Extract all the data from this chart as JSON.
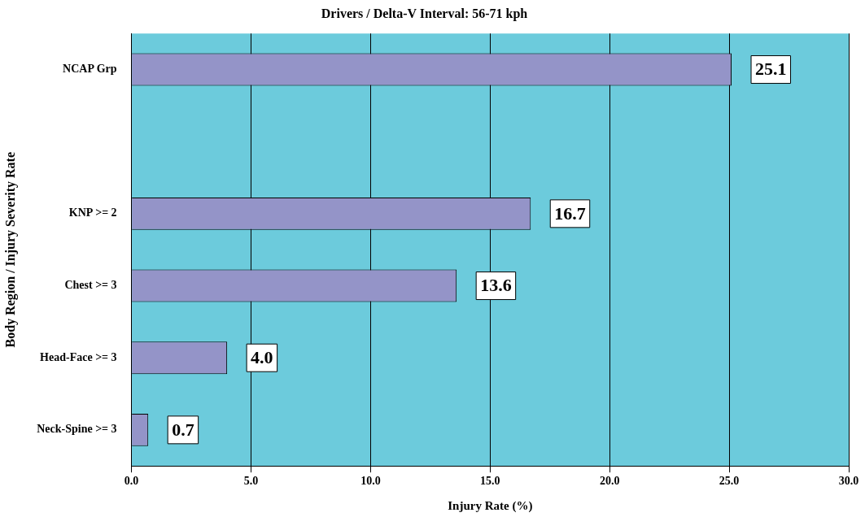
{
  "chart_data": {
    "type": "bar",
    "orientation": "horizontal",
    "title": "Drivers / Delta-V Interval: 56-71 kph",
    "xlabel": "Injury Rate (%)",
    "ylabel": "Body Region / Injury Severity Rate",
    "categories": [
      "NCAP Grp",
      null,
      "KNP >= 2",
      "Chest >= 3",
      "Head-Face >= 3",
      "Neck-Spine >= 3"
    ],
    "values": [
      25.1,
      null,
      16.7,
      13.6,
      4.0,
      0.7
    ],
    "value_labels": [
      "25.1",
      null,
      "16.7",
      "13.6",
      "4.0",
      "0.7"
    ],
    "color": "#9494c8",
    "xlim": [
      0,
      30
    ],
    "xticks": [
      {
        "value": 0,
        "label": "0.0"
      },
      {
        "value": 5,
        "label": "5.0"
      },
      {
        "value": 10,
        "label": "10.0"
      },
      {
        "value": 15,
        "label": "15.0"
      },
      {
        "value": 20,
        "label": "20.0"
      },
      {
        "value": 25,
        "label": "25.0"
      },
      {
        "value": 30,
        "label": "30.0"
      }
    ],
    "grid": "x",
    "legend": false
  }
}
